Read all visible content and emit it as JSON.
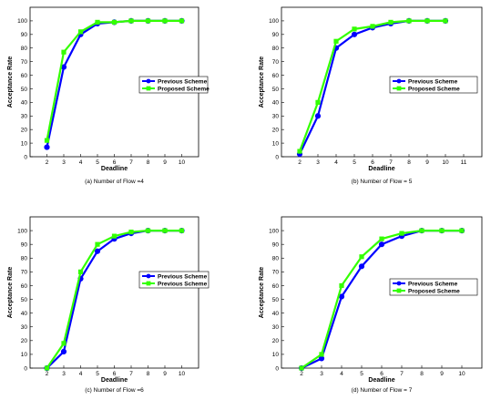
{
  "chart_data": [
    {
      "type": "line",
      "caption": "(a) Number of Flow =4",
      "xlabel": "Deadline",
      "ylabel": "Acceptance Rate",
      "xlim": [
        1,
        11
      ],
      "ylim": [
        0,
        110
      ],
      "xticks": [
        2,
        3,
        4,
        5,
        6,
        7,
        8,
        9,
        10
      ],
      "yticks": [
        0,
        10,
        20,
        30,
        40,
        50,
        60,
        70,
        80,
        90,
        100
      ],
      "legend_position": "middle-right",
      "series": [
        {
          "name": "Previous Scheme",
          "color": "#0000ff",
          "marker": "circle",
          "x": [
            2,
            3,
            4,
            5,
            6,
            7,
            8,
            9,
            10
          ],
          "y": [
            7,
            66,
            90,
            98,
            99,
            100,
            100,
            100,
            100
          ]
        },
        {
          "name": "Proposed Scheme",
          "color": "#33ff00",
          "marker": "square",
          "x": [
            2,
            3,
            4,
            5,
            6,
            7,
            8,
            9,
            10
          ],
          "y": [
            12,
            77,
            92,
            99,
            99,
            100,
            100,
            100,
            100
          ]
        }
      ]
    },
    {
      "type": "line",
      "caption": "(b) Number of Flow = 5",
      "xlabel": "Deadline",
      "ylabel": "Acceptance Rate",
      "xlim": [
        1,
        12
      ],
      "ylim": [
        0,
        110
      ],
      "xticks": [
        2,
        3,
        4,
        5,
        6,
        7,
        8,
        9,
        10,
        11
      ],
      "yticks": [
        0,
        10,
        20,
        30,
        40,
        50,
        60,
        70,
        80,
        90,
        100
      ],
      "legend_position": "middle-right",
      "series": [
        {
          "name": "Previous Scheme",
          "color": "#0000ff",
          "marker": "circle",
          "x": [
            2,
            3,
            4,
            5,
            6,
            7,
            8,
            9,
            10
          ],
          "y": [
            2,
            30,
            80,
            90,
            95,
            98,
            100,
            100,
            100
          ]
        },
        {
          "name": "Proposed Scheme",
          "color": "#33ff00",
          "marker": "square",
          "x": [
            2,
            3,
            4,
            5,
            6,
            7,
            8,
            9,
            10
          ],
          "y": [
            4,
            40,
            85,
            94,
            96,
            99,
            100,
            100,
            100
          ]
        }
      ]
    },
    {
      "type": "line",
      "caption": "(c) Number of Flow =6",
      "xlabel": "Deadline",
      "ylabel": "Acceptance Rate",
      "xlim": [
        1,
        11
      ],
      "ylim": [
        0,
        110
      ],
      "xticks": [
        2,
        3,
        4,
        5,
        6,
        7,
        8,
        9,
        10
      ],
      "yticks": [
        0,
        10,
        20,
        30,
        40,
        50,
        60,
        70,
        80,
        90,
        100
      ],
      "legend_position": "middle-right",
      "series": [
        {
          "name": "Previous Scheme",
          "color": "#0000ff",
          "marker": "circle",
          "x": [
            2,
            3,
            4,
            5,
            6,
            7,
            8,
            9,
            10
          ],
          "y": [
            0,
            12,
            65,
            85,
            94,
            98,
            100,
            100,
            100
          ]
        },
        {
          "name": "Previous Scheme",
          "color": "#33ff00",
          "marker": "square",
          "x": [
            2,
            3,
            4,
            5,
            6,
            7,
            8,
            9,
            10
          ],
          "y": [
            0,
            18,
            70,
            90,
            96,
            99,
            100,
            100,
            100
          ]
        }
      ]
    },
    {
      "type": "line",
      "caption": "(d) Number of Flow = 7",
      "xlabel": "Deadline",
      "ylabel": "Acceptance Rate",
      "xlim": [
        1,
        11
      ],
      "ylim": [
        0,
        110
      ],
      "xticks": [
        2,
        3,
        4,
        5,
        6,
        7,
        8,
        9,
        10
      ],
      "yticks": [
        0,
        10,
        20,
        30,
        40,
        50,
        60,
        70,
        80,
        90,
        100
      ],
      "legend_position": "middle-right",
      "series": [
        {
          "name": "Previous Scheme",
          "color": "#0000ff",
          "marker": "circle",
          "x": [
            2,
            3,
            4,
            5,
            6,
            7,
            8,
            9,
            10
          ],
          "y": [
            0,
            7,
            52,
            74,
            90,
            96,
            100,
            100,
            100
          ]
        },
        {
          "name": "Proposed Scheme",
          "color": "#33ff00",
          "marker": "square",
          "x": [
            2,
            3,
            4,
            5,
            6,
            7,
            8,
            9,
            10
          ],
          "y": [
            0,
            10,
            60,
            81,
            94,
            98,
            100,
            100,
            100
          ]
        }
      ]
    }
  ]
}
